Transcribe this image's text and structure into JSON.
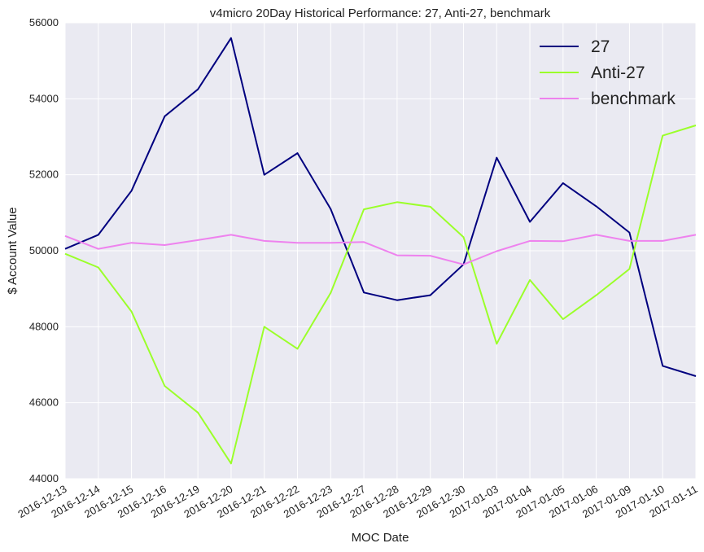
{
  "chart_data": {
    "type": "line",
    "title": "v4micro 20Day Historical Performance: 27, Anti-27, benchmark",
    "xlabel": "MOC Date",
    "ylabel": "$ Account Value",
    "ylim": [
      44000,
      56000
    ],
    "yticks": [
      44000,
      46000,
      48000,
      50000,
      52000,
      54000,
      56000
    ],
    "grid": true,
    "legend_position": "top-right",
    "categories": [
      "2016-12-13",
      "2016-12-14",
      "2016-12-15",
      "2016-12-16",
      "2016-12-19",
      "2016-12-20",
      "2016-12-21",
      "2016-12-22",
      "2016-12-23",
      "2016-12-27",
      "2016-12-28",
      "2016-12-29",
      "2016-12-30",
      "2017-01-03",
      "2017-01-04",
      "2017-01-05",
      "2017-01-06",
      "2017-01-09",
      "2017-01-10",
      "2017-01-11"
    ],
    "series": [
      {
        "name": "27",
        "color": "#00007f",
        "values": [
          50050,
          50420,
          51580,
          53540,
          54250,
          55600,
          52000,
          52570,
          51100,
          48900,
          48700,
          48830,
          49640,
          52450,
          50760,
          51780,
          51170,
          50480,
          46970,
          46700
        ]
      },
      {
        "name": "Anti-27",
        "color": "#9bff2a",
        "values": [
          49920,
          49560,
          48400,
          46440,
          45740,
          44400,
          48000,
          47420,
          48890,
          51090,
          51280,
          51160,
          50360,
          47550,
          49230,
          48200,
          48830,
          49520,
          53030,
          53300
        ]
      },
      {
        "name": "benchmark",
        "color": "#ee82ee",
        "values": [
          50390,
          50050,
          50210,
          50150,
          50280,
          50420,
          50260,
          50210,
          50210,
          50230,
          49880,
          49870,
          49640,
          49990,
          50260,
          50250,
          50420,
          50260,
          50260,
          50420
        ]
      }
    ]
  }
}
